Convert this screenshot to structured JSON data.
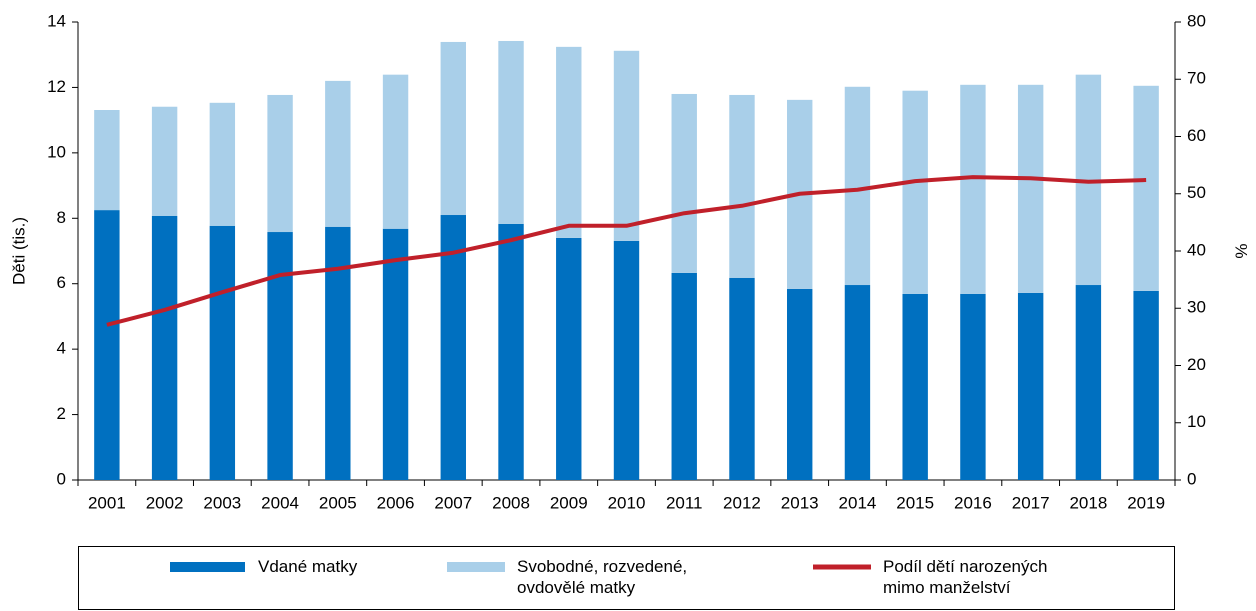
{
  "chart_data": {
    "type": "bar",
    "stacked": true,
    "y_label": "Děti (tis.)",
    "y2_label": "%",
    "categories": [
      "2001",
      "2002",
      "2003",
      "2004",
      "2005",
      "2006",
      "2007",
      "2008",
      "2009",
      "2010",
      "2011",
      "2012",
      "2013",
      "2014",
      "2015",
      "2016",
      "2017",
      "2018",
      "2019"
    ],
    "series": [
      {
        "name": "Vdané matky",
        "type": "bar",
        "color": "#0070c0",
        "values": [
          8.25,
          8.07,
          7.77,
          7.58,
          7.74,
          7.68,
          8.1,
          7.83,
          7.4,
          7.31,
          6.33,
          6.18,
          5.84,
          5.96,
          5.69,
          5.69,
          5.72,
          5.96,
          5.78
        ]
      },
      {
        "name": "Svobodné, rozvedené,\novdovělé matky",
        "type": "bar",
        "color": "#a9cfe9",
        "values": [
          3.06,
          3.34,
          3.76,
          4.19,
          4.46,
          4.71,
          5.29,
          5.59,
          5.84,
          5.81,
          5.47,
          5.59,
          5.78,
          6.06,
          6.21,
          6.39,
          6.36,
          6.43,
          6.27
        ]
      },
      {
        "name": "Podíl dětí narozených\nmimo manželství",
        "type": "line",
        "axis": "y2",
        "color": "#c0202a",
        "values": [
          27.1,
          29.7,
          32.8,
          35.8,
          36.9,
          38.4,
          39.7,
          41.9,
          44.4,
          44.4,
          46.6,
          47.9,
          50.0,
          50.7,
          52.2,
          52.9,
          52.7,
          52.1,
          52.4
        ]
      }
    ],
    "ylim": [
      0,
      14
    ],
    "yticks": [
      0,
      2,
      4,
      6,
      8,
      10,
      12,
      14
    ],
    "y2lim": [
      0,
      80
    ],
    "y2ticks": [
      0,
      10,
      20,
      30,
      40,
      50,
      60,
      70,
      80
    ],
    "grid": false,
    "legend": "bottom"
  }
}
